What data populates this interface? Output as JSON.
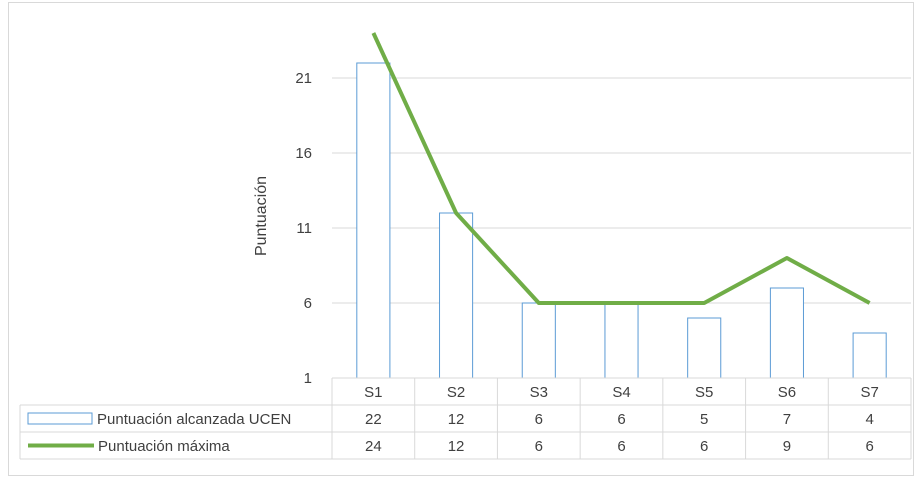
{
  "chart_data": {
    "type": "bar",
    "title": "",
    "xlabel": "",
    "ylabel": "Puntuación",
    "ylim": [
      1,
      26
    ],
    "yticks": [
      1,
      6,
      11,
      16,
      21
    ],
    "grid": true,
    "categories": [
      "S1",
      "S2",
      "S3",
      "S4",
      "S5",
      "S6",
      "S7"
    ],
    "series": [
      {
        "name": "Puntuación alcanzada UCEN",
        "type": "bar",
        "values": [
          22,
          12,
          6,
          6,
          5,
          7,
          4
        ]
      },
      {
        "name": "Puntuación máxima",
        "type": "line",
        "values": [
          24,
          12,
          6,
          6,
          6,
          9,
          6
        ]
      }
    ],
    "legend": "data-table",
    "colors": {
      "bar_stroke": "#5b9bd5",
      "line": "#70ad47",
      "grid": "#d9d9d9",
      "text": "#404040"
    }
  }
}
